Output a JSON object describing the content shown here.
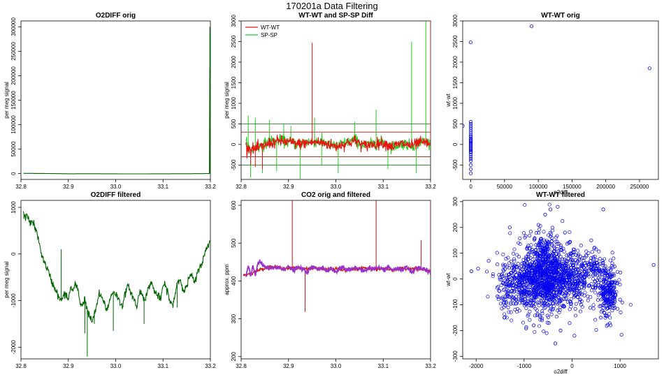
{
  "figure_title": "170201a   Data Filtering",
  "chart_data": [
    {
      "id": "p1",
      "type": "line",
      "title": "O2DIFF orig",
      "xlabel": "",
      "ylabel": "per meg signal",
      "xlim": [
        32.8,
        33.2
      ],
      "ylim": [
        -12000,
        312000
      ],
      "xticks": [
        32.8,
        32.9,
        33.0,
        33.1,
        33.2
      ],
      "xtick_labels": [
        "32.8",
        "32.9",
        "33.0",
        "33.1",
        "33.2"
      ],
      "yticks": [
        0,
        50000,
        100000,
        150000,
        200000,
        250000,
        300000
      ],
      "ytick_labels": [
        "0",
        "50000",
        "100000",
        "150000",
        "200000",
        "250000",
        "300000"
      ],
      "series": [
        {
          "color": "#006400",
          "x": [
            32.805,
            32.85,
            32.9,
            32.95,
            33.0,
            33.05,
            33.1,
            33.15,
            33.198,
            33.199,
            33.2,
            33.201
          ],
          "y": [
            500,
            200,
            -400,
            -300,
            -500,
            -600,
            -400,
            -300,
            0,
            300000,
            0,
            0
          ]
        }
      ]
    },
    {
      "id": "p2",
      "type": "line",
      "title": "WT-WT and SP-SP Diff",
      "xlabel": "",
      "ylabel": "per meg signal",
      "xlim": [
        32.8,
        33.2
      ],
      "ylim": [
        -850,
        3000
      ],
      "xticks": [
        32.8,
        32.9,
        33.0,
        33.1,
        33.2
      ],
      "xtick_labels": [
        "32.8",
        "32.9",
        "33.0",
        "33.1",
        "33.2"
      ],
      "yticks": [
        -500,
        0,
        500,
        1000,
        1500,
        2000,
        2500,
        3000
      ],
      "ytick_labels": [
        "-500",
        "0",
        "500",
        "1000",
        "1500",
        "2000",
        "2500",
        "3000"
      ],
      "hlines": [
        {
          "y": 500,
          "color": "#2e7d32"
        },
        {
          "y": 300,
          "color": "#8b1a1a"
        },
        {
          "y": -300,
          "color": "#8b1a1a"
        },
        {
          "y": -500,
          "color": "#2e7d32"
        }
      ],
      "legend": {
        "position": "top-left",
        "entries": [
          "WT-WT",
          "SP-SP"
        ]
      },
      "series": [
        {
          "name": "SP-SP",
          "color": "#22cc22",
          "x": [
            32.81,
            32.82,
            32.84,
            32.86,
            32.88,
            32.9,
            32.92,
            32.94,
            32.96,
            32.98,
            33.0,
            33.02,
            33.04,
            33.06,
            33.08,
            33.1,
            33.12,
            33.14,
            33.16,
            33.18,
            33.2
          ],
          "y": [
            50,
            -150,
            -50,
            80,
            100,
            60,
            20,
            60,
            80,
            30,
            -60,
            40,
            120,
            -40,
            20,
            60,
            -60,
            30,
            -40,
            80,
            20
          ],
          "spikes": [
            [
              32.815,
              700
            ],
            [
              32.82,
              -800
            ],
            [
              32.83,
              650
            ],
            [
              32.845,
              -700
            ],
            [
              32.86,
              600
            ],
            [
              32.875,
              -650
            ],
            [
              32.89,
              500
            ],
            [
              32.905,
              450
            ],
            [
              32.925,
              -850
            ],
            [
              32.955,
              650
            ],
            [
              32.97,
              -500
            ],
            [
              33.005,
              -700
            ],
            [
              33.04,
              550
            ],
            [
              33.085,
              850
            ],
            [
              33.11,
              -600
            ],
            [
              33.16,
              2500
            ],
            [
              33.19,
              3000
            ],
            [
              33.17,
              -700
            ]
          ]
        },
        {
          "name": "WT-WT",
          "color": "#ee1111",
          "x": [
            32.81,
            32.82,
            32.84,
            32.86,
            32.88,
            32.9,
            32.92,
            32.94,
            32.96,
            32.98,
            33.0,
            33.02,
            33.04,
            33.06,
            33.08,
            33.1,
            33.12,
            33.14,
            33.16,
            33.18,
            33.2
          ],
          "y": [
            -40,
            -120,
            -80,
            30,
            80,
            60,
            10,
            40,
            60,
            20,
            -50,
            20,
            90,
            -30,
            10,
            40,
            -50,
            20,
            -30,
            50,
            10
          ],
          "spikes": [
            [
              32.82,
              -500
            ],
            [
              32.83,
              -550
            ],
            [
              32.845,
              -600
            ],
            [
              32.86,
              150
            ],
            [
              32.95,
              2470
            ],
            [
              33.2,
              3000
            ]
          ]
        }
      ]
    },
    {
      "id": "p3",
      "type": "scatter",
      "title": "WT-WT orig",
      "xlabel": "o2diff",
      "ylabel": "wt-wt",
      "xlim": [
        -12000,
        278000
      ],
      "ylim": [
        -850,
        3000
      ],
      "xticks": [
        0,
        50000,
        100000,
        150000,
        200000,
        250000
      ],
      "xtick_labels": [
        "0",
        "50000",
        "100000",
        "150000",
        "200000",
        "250000"
      ],
      "yticks": [
        -500,
        0,
        500,
        1000,
        1500,
        2000,
        2500,
        3000
      ],
      "ytick_labels": [
        "-500",
        "0",
        "500",
        "1000",
        "1500",
        "2000",
        "2500",
        "3000"
      ],
      "series": [
        {
          "color": "#0000ee",
          "x": [
            0,
            0,
            0,
            0,
            0,
            0,
            0,
            0,
            0,
            0,
            0,
            0,
            0,
            0,
            0,
            0,
            0,
            0,
            0,
            0,
            0,
            0,
            0,
            0,
            0,
            0,
            0,
            0,
            0,
            0,
            -200,
            -12000,
            0,
            90000,
            265000
          ],
          "y": [
            -700,
            -600,
            -500,
            -400,
            -350,
            -300,
            -250,
            -200,
            -150,
            -100,
            -50,
            0,
            50,
            100,
            150,
            200,
            250,
            300,
            350,
            400,
            450,
            500,
            550,
            -30,
            -80,
            -120,
            20,
            80,
            120,
            -180,
            2480,
            450,
            200,
            2870,
            1850
          ]
        }
      ]
    },
    {
      "id": "p4",
      "type": "line",
      "title": "O2DIFF filtered",
      "xlabel": "",
      "ylabel": "per meg signal",
      "xlim": [
        32.8,
        33.2
      ],
      "ylim": [
        -2250,
        1150
      ],
      "xticks": [
        32.8,
        32.9,
        33.0,
        33.1,
        33.2
      ],
      "xtick_labels": [
        "32.8",
        "32.9",
        "33.0",
        "33.1",
        "33.2"
      ],
      "yticks": [
        -2000,
        -1000,
        0,
        1000
      ],
      "ytick_labels": [
        "-2000",
        "-1000",
        "0",
        "1000"
      ],
      "series": [
        {
          "color": "#006400",
          "x": [
            32.805,
            32.81,
            32.815,
            32.82,
            32.825,
            32.83,
            32.835,
            32.84,
            32.845,
            32.85,
            32.855,
            32.86,
            32.865,
            32.87,
            32.875,
            32.88,
            32.885,
            32.89,
            32.895,
            32.9,
            32.905,
            32.91,
            32.915,
            32.92,
            32.925,
            32.93,
            32.935,
            32.94,
            32.945,
            32.95,
            32.955,
            32.96,
            32.965,
            32.97,
            32.975,
            32.98,
            32.985,
            32.99,
            32.995,
            33.0,
            33.005,
            33.01,
            33.015,
            33.02,
            33.025,
            33.03,
            33.035,
            33.04,
            33.045,
            33.05,
            33.055,
            33.06,
            33.065,
            33.07,
            33.075,
            33.08,
            33.085,
            33.09,
            33.095,
            33.1,
            33.105,
            33.11,
            33.115,
            33.12,
            33.125,
            33.13,
            33.135,
            33.14,
            33.145,
            33.15,
            33.155,
            33.16,
            33.165,
            33.17,
            33.175,
            33.18,
            33.185,
            33.19,
            33.195,
            33.2
          ],
          "y": [
            850,
            780,
            820,
            650,
            700,
            550,
            400,
            150,
            -50,
            -200,
            -300,
            -450,
            -600,
            -700,
            -800,
            -950,
            -1000,
            -900,
            -850,
            -1000,
            -700,
            -800,
            -650,
            -750,
            -1050,
            -1100,
            -950,
            -1200,
            -1350,
            -1450,
            -1300,
            -1100,
            -850,
            -950,
            -1000,
            -1200,
            -1100,
            -900,
            -800,
            -850,
            -950,
            -1050,
            -1100,
            -850,
            -700,
            -750,
            -900,
            -1000,
            -1150,
            -800,
            -850,
            -950,
            -900,
            -700,
            -600,
            -750,
            -850,
            -900,
            -1000,
            -650,
            -700,
            -800,
            -1050,
            -1100,
            -900,
            -600,
            -550,
            -650,
            -800,
            -700,
            -500,
            -450,
            -600,
            -550,
            -300,
            -250,
            -100,
            50,
            200,
            300
          ],
          "spikes": [
            [
              32.885,
              100
            ],
            [
              32.935,
              -1700
            ],
            [
              32.94,
              -2200
            ],
            [
              32.955,
              -1500
            ],
            [
              32.995,
              -1650
            ],
            [
              33.06,
              -1500
            ],
            [
              33.13,
              -1150
            ]
          ]
        }
      ]
    },
    {
      "id": "p5",
      "type": "line",
      "title": "CO2 orig and filtered",
      "xlabel": "",
      "ylabel": "approx. ppm",
      "xlim": [
        32.8,
        33.2
      ],
      "ylim": [
        194,
        613
      ],
      "xticks": [
        32.8,
        32.9,
        33.0,
        33.1,
        33.2
      ],
      "xtick_labels": [
        "32.8",
        "32.9",
        "33.0",
        "33.1",
        "33.2"
      ],
      "yticks": [
        200,
        300,
        400,
        500,
        600
      ],
      "ytick_labels": [
        "200",
        "300",
        "400",
        "500",
        "600"
      ],
      "series": [
        {
          "name": "orig",
          "color": "#cc1111",
          "x": [
            32.805,
            32.82,
            32.84,
            32.86,
            32.88,
            32.9,
            32.92,
            32.94,
            32.96,
            32.98,
            33.0,
            33.02,
            33.04,
            33.06,
            33.08,
            33.1,
            33.12,
            33.14,
            33.16,
            33.18,
            33.2
          ],
          "y": [
            415,
            420,
            430,
            438,
            435,
            433,
            435,
            432,
            434,
            430,
            432,
            428,
            431,
            434,
            430,
            433,
            429,
            432,
            434,
            431,
            425
          ],
          "spikes": [
            [
              32.908,
              613
            ],
            [
              32.935,
              318
            ],
            [
              33.085,
              613
            ],
            [
              33.18,
              508
            ],
            [
              33.2,
              613
            ]
          ]
        },
        {
          "name": "filtered",
          "color": "#9932cc",
          "x": [
            32.81,
            32.815,
            32.82,
            32.825,
            32.83,
            32.835,
            32.84,
            32.85,
            32.86,
            32.87,
            32.88,
            32.89,
            32.9,
            32.91,
            32.92,
            32.93,
            32.94,
            32.95,
            32.96,
            32.97,
            32.98,
            32.99,
            33.0,
            33.01,
            33.02,
            33.03,
            33.04,
            33.05,
            33.06,
            33.07,
            33.08,
            33.09,
            33.1,
            33.11,
            33.12,
            33.13,
            33.14,
            33.15,
            33.16,
            33.17,
            33.18,
            33.19,
            33.2
          ],
          "y": [
            410,
            440,
            412,
            440,
            415,
            445,
            450,
            436,
            432,
            436,
            434,
            432,
            437,
            428,
            436,
            432,
            422,
            438,
            432,
            436,
            428,
            434,
            422,
            436,
            432,
            430,
            436,
            432,
            425,
            436,
            432,
            434,
            428,
            436,
            430,
            432,
            430,
            436,
            420,
            434,
            432,
            430,
            420
          ]
        }
      ]
    },
    {
      "id": "p6",
      "type": "scatter",
      "title": "WT-WT filtered",
      "xlabel": "o2diff",
      "ylabel": "wt-wt",
      "xlim": [
        -2280,
        1800
      ],
      "ylim": [
        -310,
        305
      ],
      "xticks": [
        -2000,
        -1000,
        0,
        1000
      ],
      "xtick_labels": [
        "-2000",
        "-1000",
        "0",
        "1000"
      ],
      "yticks": [
        -300,
        -200,
        -100,
        0,
        100,
        200,
        300
      ],
      "ytick_labels": [
        "-300",
        "-200",
        "-100",
        "0",
        "100",
        "200",
        "300"
      ],
      "clusters": [
        {
          "cx": -550,
          "cy": 20,
          "sx": 220,
          "sy": 75,
          "n": 900
        },
        {
          "cx": -1100,
          "cy": -20,
          "sx": 230,
          "sy": 55,
          "n": 350
        },
        {
          "cx": 30,
          "cy": 0,
          "sx": 200,
          "sy": 55,
          "n": 300
        },
        {
          "cx": 750,
          "cy": -50,
          "sx": 110,
          "sy": 55,
          "n": 250
        },
        {
          "cx": 450,
          "cy": 40,
          "sx": 100,
          "sy": 30,
          "n": 80
        }
      ],
      "series": [
        {
          "color": "#0000ee",
          "x": [
            -2100,
            -1960,
            -1740,
            -300,
            -450,
            -560,
            650,
            1700,
            -240,
            50,
            -800,
            -350,
            -1300,
            400,
            -700,
            600,
            900,
            1000,
            -1450,
            -150
          ],
          "y": [
            30,
            40,
            70,
            280,
            270,
            250,
            270,
            55,
            -200,
            -220,
            -180,
            -250,
            200,
            150,
            210,
            -150,
            -60,
            -80,
            10,
            180
          ]
        }
      ]
    }
  ]
}
